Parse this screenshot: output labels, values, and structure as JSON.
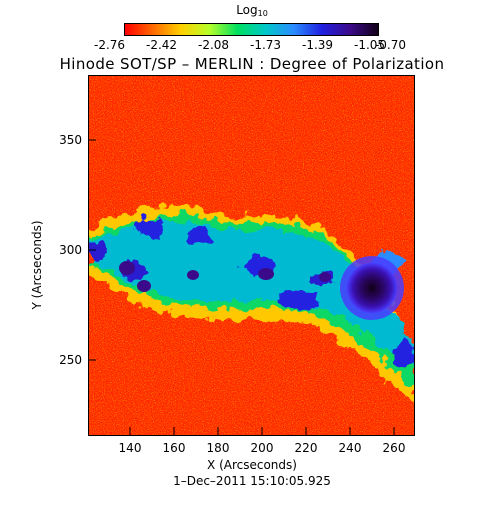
{
  "colorbar": {
    "label_base": "Log",
    "label_sub": "10",
    "ticks": [
      "-2.76",
      "-2.42",
      "-2.08",
      "-1.73",
      "-1.39",
      "-1.05",
      "-0.70"
    ],
    "gradient_colors": [
      "#ff0000",
      "#ff6a00",
      "#ffd000",
      "#b6ff2a",
      "#00e060",
      "#00c8c8",
      "#2a8cff",
      "#2020e0",
      "#3b0a8a",
      "#120018"
    ]
  },
  "plot": {
    "title": "Hinode SOT/SP – MERLIN : Degree of Polarization",
    "xlabel": "X (Arcseconds)",
    "ylabel": "Y (Arcseconds)",
    "x_ticks": [
      "140",
      "160",
      "180",
      "200",
      "220",
      "240",
      "260"
    ],
    "y_ticks": [
      "250",
      "300",
      "350"
    ],
    "timestamp": "1–Dec–2011 15:10:05.925"
  }
}
